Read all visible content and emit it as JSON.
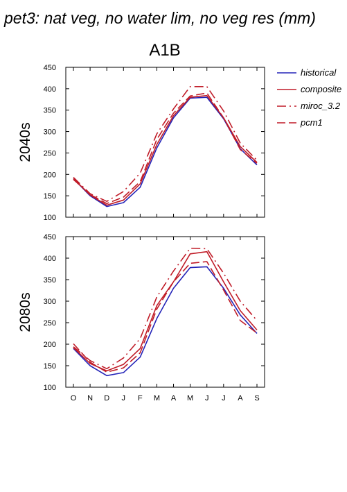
{
  "title": "pet3: nat veg, no water lim, no veg res (mm)",
  "scenario": "A1B",
  "colors": {
    "historical": "#2424b8",
    "models": "#c01c28",
    "axis": "#000000"
  },
  "chart_data": [
    {
      "type": "line",
      "panel_label": "2040s",
      "categories": [
        "O",
        "N",
        "D",
        "J",
        "F",
        "M",
        "A",
        "M",
        "J",
        "J",
        "A",
        "S"
      ],
      "ylim": [
        100,
        450
      ],
      "yticks": [
        100,
        150,
        200,
        250,
        300,
        350,
        400,
        450
      ],
      "grid": false,
      "legend": "right",
      "series": [
        {
          "name": "historical",
          "values": [
            190,
            150,
            125,
            134,
            170,
            262,
            332,
            378,
            380,
            330,
            260,
            222
          ]
        },
        {
          "name": "composite",
          "values": [
            190,
            152,
            128,
            140,
            178,
            270,
            337,
            380,
            384,
            332,
            265,
            228
          ]
        },
        {
          "name": "miroc_3.2",
          "values": [
            193,
            155,
            137,
            160,
            203,
            295,
            353,
            405,
            405,
            348,
            273,
            233
          ]
        },
        {
          "name": "pcm1",
          "values": [
            188,
            153,
            132,
            147,
            183,
            282,
            343,
            383,
            390,
            332,
            258,
            226
          ]
        }
      ]
    },
    {
      "type": "line",
      "panel_label": "2080s",
      "categories": [
        "O",
        "N",
        "D",
        "J",
        "F",
        "M",
        "A",
        "M",
        "J",
        "J",
        "A",
        "S"
      ],
      "ylim": [
        100,
        450
      ],
      "yticks": [
        100,
        150,
        200,
        250,
        300,
        350,
        400,
        450
      ],
      "grid": false,
      "legend": "right",
      "series": [
        {
          "name": "historical",
          "values": [
            190,
            150,
            127,
            134,
            170,
            260,
            330,
            378,
            380,
            330,
            268,
            225
          ]
        },
        {
          "name": "composite",
          "values": [
            192,
            155,
            138,
            153,
            190,
            290,
            345,
            410,
            415,
            345,
            278,
            233
          ]
        },
        {
          "name": "miroc_3.2",
          "values": [
            194,
            162,
            143,
            168,
            213,
            310,
            370,
            423,
            422,
            365,
            300,
            255
          ]
        },
        {
          "name": "pcm1",
          "values": [
            201,
            158,
            135,
            145,
            180,
            282,
            345,
            388,
            392,
            326,
            255,
            226
          ]
        }
      ]
    }
  ],
  "legend": [
    {
      "name": "historical",
      "style": "solid"
    },
    {
      "name": "composite",
      "style": "solid"
    },
    {
      "name": "miroc_3.2",
      "style": "dashdot"
    },
    {
      "name": "pcm1",
      "style": "dashed"
    }
  ]
}
